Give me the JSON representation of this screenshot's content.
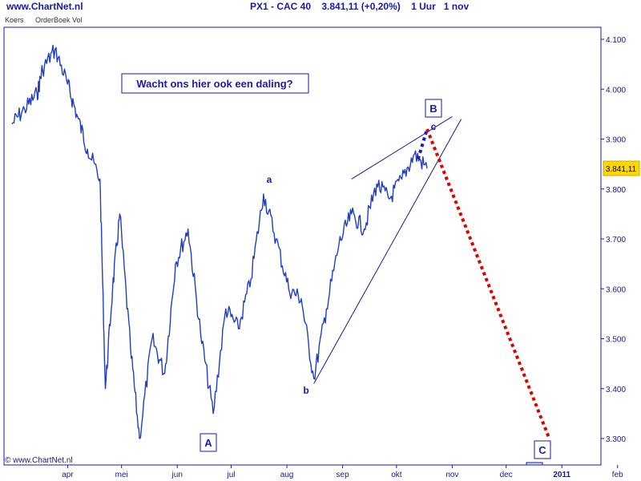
{
  "header": {
    "brand": "www.ChartNet.nl",
    "title": "PX1 - CAC 40    3.841,11 (+0,20%)    1 Uur   1 nov"
  },
  "tabs": [
    "Koers",
    "OrderBoek Vol"
  ],
  "copyright": "© www.ChartNet.nl",
  "annotation": "Wacht ons hier ook een daling?",
  "last_price_label": "3.841,11",
  "colors": {
    "price": "#1f3fbf",
    "frame": "#1a1aa6",
    "forecast_red": "#dd0000",
    "forecast_blue": "#1a1acc",
    "trend": "#1a1a80"
  },
  "chart_data": {
    "type": "line",
    "title": "PX1 - CAC 40",
    "x_ticks": [
      "apr",
      "mei",
      "jun",
      "jul",
      "aug",
      "sep",
      "okt",
      "nov",
      "dec",
      "2011",
      "feb"
    ],
    "y_ticks": [
      3300,
      3400,
      3500,
      3600,
      3700,
      3800,
      3900,
      4000,
      4100
    ],
    "y_tick_labels": [
      "3.300",
      "3.400",
      "3.500",
      "3.600",
      "3.700",
      "3.800",
      "3.900",
      "4.000",
      "4.100"
    ],
    "ylim": [
      3250,
      4130
    ],
    "last_value": 3841.11,
    "series": [
      {
        "x": [
          "2010-03-15",
          "2010-03-22",
          "2010-03-29",
          "2010-04-01",
          "2010-04-08",
          "2010-04-15",
          "2010-04-20",
          "2010-04-26",
          "2010-05-03",
          "2010-05-06",
          "2010-05-10",
          "2010-05-14",
          "2010-05-20",
          "2010-05-25",
          "2010-06-01",
          "2010-06-08",
          "2010-06-14",
          "2010-06-21",
          "2010-06-28",
          "2010-07-05",
          "2010-07-12",
          "2010-07-19",
          "2010-07-26",
          "2010-08-02",
          "2010-08-09",
          "2010-08-16",
          "2010-08-23",
          "2010-08-30",
          "2010-09-06",
          "2010-09-13",
          "2010-09-20",
          "2010-09-27",
          "2010-10-04",
          "2010-10-11",
          "2010-10-18",
          "2010-10-25",
          "2010-11-01"
        ],
        "values": [
          3930,
          3960,
          3990,
          4040,
          4080,
          4010,
          3950,
          3880,
          3820,
          3400,
          3600,
          3750,
          3480,
          3300,
          3500,
          3430,
          3650,
          3720,
          3510,
          3350,
          3560,
          3520,
          3620,
          3790,
          3700,
          3600,
          3580,
          3420,
          3560,
          3690,
          3750,
          3720,
          3810,
          3780,
          3820,
          3870,
          3841
        ]
      }
    ],
    "waves": [
      "A",
      "a",
      "b",
      "B",
      "c",
      "C"
    ],
    "forecast": [
      {
        "from": [
          "2010-10-27",
          3860
        ],
        "to": [
          "2010-11-01",
          3920
        ],
        "color": "blue"
      },
      {
        "from": [
          "2010-11-01",
          3920
        ],
        "to": [
          "2011-01-08",
          3300
        ],
        "color": "red"
      }
    ],
    "triangle_lines": [
      {
        "from": [
          "2010-08-30",
          3410
        ],
        "to": [
          "2010-11-20",
          3940
        ]
      },
      {
        "from": [
          "2010-09-20",
          3820
        ],
        "to": [
          "2010-11-15",
          3945
        ]
      }
    ]
  }
}
